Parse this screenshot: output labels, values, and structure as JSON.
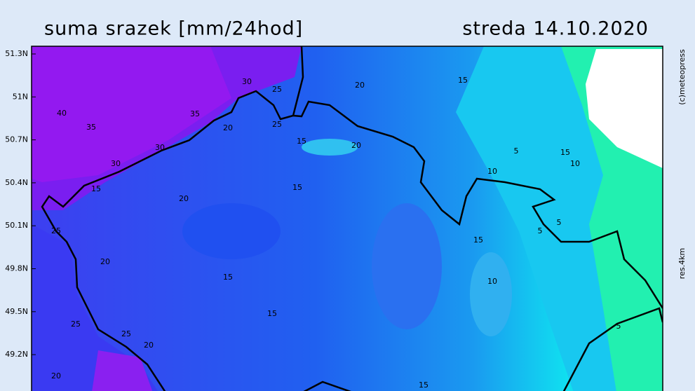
{
  "header": {
    "title": "suma srazek [mm/24hod]",
    "date": "streda 14.10.2020"
  },
  "side": {
    "copyright": "(c)meteopress",
    "resolution": "res.4km"
  },
  "lat_labels": [
    "51.3N",
    "51N",
    "50.7N",
    "50.4N",
    "50.1N",
    "49.8N",
    "49.5N",
    "49.2N"
  ],
  "contour_labels": [
    30,
    25,
    20,
    15,
    40,
    35,
    35,
    20,
    25,
    15,
    20,
    30,
    5,
    15,
    10,
    30,
    10,
    15,
    15,
    20,
    5,
    5,
    25,
    15,
    20,
    15,
    10,
    15,
    25,
    25,
    20,
    20,
    15,
    5
  ]
}
